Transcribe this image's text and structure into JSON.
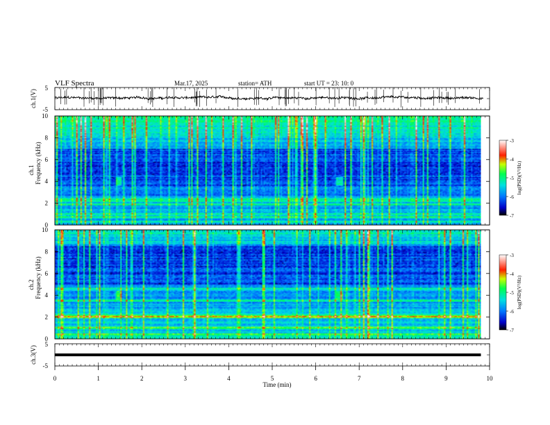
{
  "header": {
    "title": "VLF  Spectra",
    "date": "Mar.17, 2025",
    "station": "station= ATH",
    "start": "start  UT  =   23: 10: 0"
  },
  "chart_data": [
    {
      "type": "line",
      "panel": "ch1-waveform",
      "ylabel": "ch.1(V)",
      "ylim": [
        -5,
        5
      ],
      "yticks": [
        "5",
        "-5"
      ],
      "trace_color": "#000000",
      "baseline_value": 0.3,
      "noise_amplitude": 0.9,
      "spike_count": 60,
      "xlim": [
        0,
        10
      ]
    },
    {
      "type": "heatmap",
      "panel": "ch1-spectrogram",
      "ylabel_top": "ch.1",
      "ylabel": "Frequency  (kHz)",
      "ylim": [
        0,
        10
      ],
      "yticks": [
        "0",
        "2",
        "4",
        "6",
        "8",
        "10"
      ],
      "xlim": [
        0,
        10
      ],
      "data_end_min": 9.8,
      "colorbar": {
        "label": "log(PSD)(V²/Hz)",
        "range": [
          -7,
          -3
        ],
        "ticks": [
          "-3",
          "-4",
          "-5",
          "-6",
          "-7"
        ],
        "colors": [
          "#000000",
          "#0000c8",
          "#0078ff",
          "#00e0e0",
          "#00ff50",
          "#c8ff00",
          "#ff2000",
          "#ffffff"
        ]
      },
      "bright_bands_khz": [
        0.3,
        0.7,
        1.0,
        1.9,
        2.2,
        2.4
      ],
      "dark_region_khz": [
        3.5,
        7.0
      ],
      "events_min": [
        1.47,
        6.55
      ]
    },
    {
      "type": "heatmap",
      "panel": "ch2-spectrogram",
      "ylabel_top": "ch.2",
      "ylabel": "Frequency  (kHz)",
      "ylim": [
        0,
        10
      ],
      "yticks": [
        "0",
        "2",
        "4",
        "6",
        "8",
        "10"
      ],
      "xlim": [
        0,
        10
      ],
      "data_end_min": 9.8,
      "colorbar": {
        "label": "log(PSD)(V²/Hz)",
        "range": [
          -7,
          -3
        ],
        "ticks": [
          "-3",
          "-4",
          "-5",
          "-6",
          "-7"
        ],
        "colors": [
          "#000000",
          "#0000c8",
          "#0078ff",
          "#00e0e0",
          "#00ff50",
          "#c8ff00",
          "#ff2000",
          "#ffffff"
        ]
      },
      "bright_bands_khz": [
        0.4,
        1.0,
        2.0,
        2.1,
        3.5,
        4.6
      ],
      "dark_region_khz": [
        5.0,
        8.5
      ],
      "events_min": [
        1.47,
        6.55
      ]
    },
    {
      "type": "line",
      "panel": "ch3-waveform",
      "ylabel": "ch.3(V)",
      "ylim": [
        -5,
        5
      ],
      "yticks": [
        "5",
        "-5"
      ],
      "trace_color": "#000000",
      "baseline_value": 0,
      "xlim": [
        0,
        10
      ],
      "xlabel": "Time  (min)",
      "xticks": [
        "0",
        "1",
        "2",
        "3",
        "4",
        "5",
        "6",
        "7",
        "8",
        "9",
        "10"
      ]
    }
  ]
}
